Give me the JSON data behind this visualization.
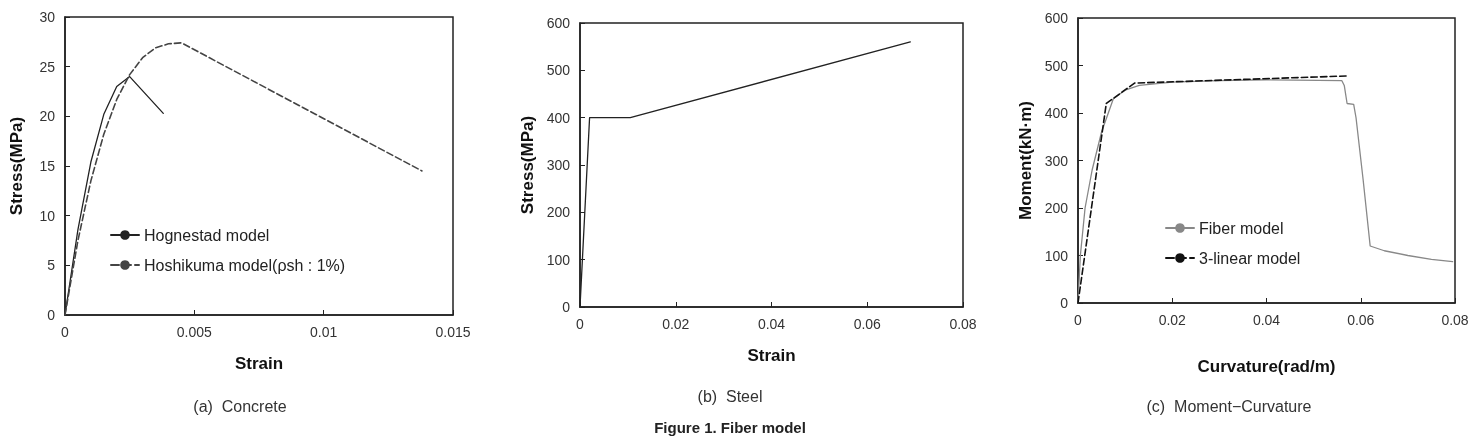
{
  "chart_data": [
    {
      "type": "line",
      "title": "(a)  Concrete",
      "xlabel": "Strain",
      "ylabel": "Stress(MPa)",
      "xlim": [
        0,
        0.015
      ],
      "xticks": [
        0,
        0.005,
        0.01,
        0.015
      ],
      "ylim": [
        0,
        30
      ],
      "yticks": [
        0,
        5,
        10,
        15,
        20,
        25,
        30
      ],
      "grid": false,
      "legend": "bottom left",
      "series": [
        {
          "name": "Hognestad model",
          "color": "#222222",
          "line_style": "solid",
          "x": [
            0,
            0.0005,
            0.001,
            0.0015,
            0.002,
            0.0025,
            0.0038
          ],
          "values": [
            0,
            8.6,
            15.4,
            20.2,
            23.0,
            24.0,
            20.3
          ]
        },
        {
          "name": "Hoshikuma model(ρsh : 1%)",
          "color": "#444444",
          "line_style": "dashed",
          "x": [
            0,
            0.0005,
            0.001,
            0.0015,
            0.002,
            0.0025,
            0.003,
            0.0035,
            0.004,
            0.0045,
            0.0138
          ],
          "values": [
            0,
            7.5,
            13.5,
            18.2,
            21.7,
            24.2,
            25.9,
            26.9,
            27.3,
            27.4,
            14.5
          ]
        }
      ]
    },
    {
      "type": "line",
      "title": "(b)  Steel",
      "xlabel": "Strain",
      "ylabel": "Stress(MPa)",
      "xlim": [
        0,
        0.08
      ],
      "xticks": [
        0,
        0.02,
        0.04,
        0.06,
        0.08
      ],
      "ylim": [
        0,
        600
      ],
      "yticks": [
        0,
        100,
        200,
        300,
        400,
        500,
        600
      ],
      "grid": false,
      "legend": false,
      "annotations": [
        "Figure 1. Fiber model"
      ],
      "series": [
        {
          "color": "#222222",
          "line_style": "solid",
          "x": [
            0,
            0.002,
            0.0105,
            0.069
          ],
          "values": [
            0,
            400,
            400,
            560
          ]
        }
      ]
    },
    {
      "type": "line",
      "title": "(c)  Moment−Curvature",
      "xlabel": "Curvature(rad/m)",
      "ylabel": "Moment(kN·m)",
      "xlim": [
        0,
        0.08
      ],
      "xticks": [
        0,
        0.02,
        0.04,
        0.06,
        0.08
      ],
      "ylim": [
        0,
        600
      ],
      "yticks": [
        0,
        100,
        200,
        300,
        400,
        500,
        600
      ],
      "grid": false,
      "legend": "bottom",
      "series": [
        {
          "name": "Fiber model",
          "color": "#888888",
          "line_style": "solid",
          "x": [
            0,
            0.0005,
            0.0015,
            0.003,
            0.005,
            0.0075,
            0.01,
            0.013,
            0.02,
            0.03,
            0.04,
            0.056,
            0.0565,
            0.0571,
            0.0585,
            0.059,
            0.0605,
            0.062,
            0.065,
            0.07,
            0.075,
            0.0795
          ],
          "values": [
            0,
            100,
            200,
            280,
            360,
            430,
            448,
            458,
            465,
            468,
            470,
            468,
            458,
            420,
            418,
            390,
            260,
            120,
            110,
            100,
            92,
            87
          ]
        },
        {
          "name": "3-linear model",
          "color": "#111111",
          "line_style": "dashed",
          "x": [
            0,
            0.006,
            0.012,
            0.057
          ],
          "values": [
            0,
            420,
            463,
            478
          ]
        }
      ]
    }
  ]
}
